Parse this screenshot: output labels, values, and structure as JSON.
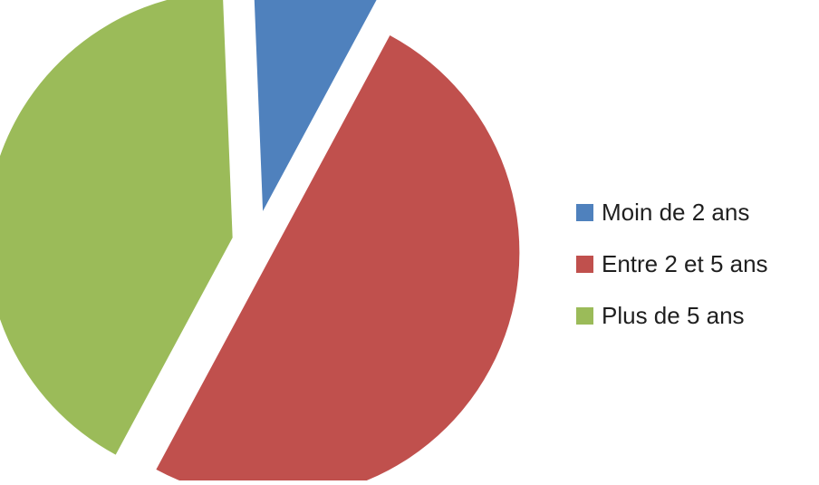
{
  "chart_data": {
    "type": "pie",
    "title": "",
    "legend_position": "right",
    "exploded": true,
    "slices": [
      {
        "label": "Moin de 2 ans",
        "value": 8.5,
        "color": "#4f81bd"
      },
      {
        "label": "Entre 2 et 5 ans",
        "value": 50.0,
        "color": "#c0504d"
      },
      {
        "label": "Plus de 5 ans",
        "value": 41.5,
        "color": "#9bbb59"
      }
    ]
  }
}
